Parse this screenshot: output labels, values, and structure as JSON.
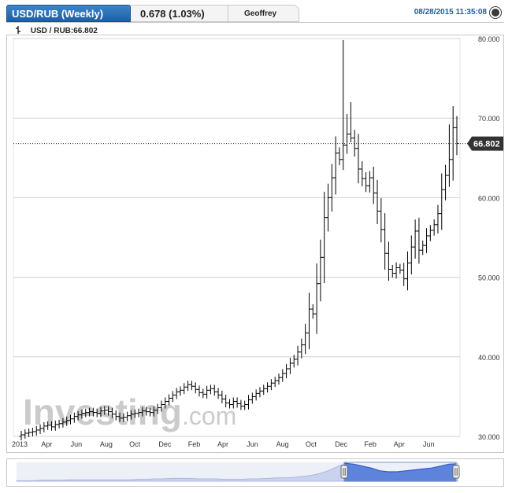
{
  "header": {
    "title": "USD/RUB (Weekly)",
    "change": "0.678 (1.03%)",
    "user": "Geoffrey",
    "timestamp": "08/28/2015 11:35:08"
  },
  "legend_label": "USD / RUB:66.802",
  "watermark": {
    "main": "Investing",
    "suffix": ".com"
  },
  "colors": {
    "accent": "#1c5fa5",
    "candle": "#000000",
    "navigator": "#2f5fc8",
    "price_tag": "#333333"
  },
  "chart_data": {
    "type": "line",
    "title": "USD/RUB (Weekly)",
    "ylim": [
      30,
      80
    ],
    "y_ticks": [
      "30.000",
      "40.000",
      "50.000",
      "60.000",
      "70.000",
      "80.000"
    ],
    "x_ticks": [
      "2013",
      "Apr",
      "Jun",
      "Aug",
      "Oct",
      "Dec",
      "Feb",
      "Apr",
      "Jun",
      "Aug",
      "Oct",
      "Dec",
      "Feb",
      "Apr",
      "Jun"
    ],
    "current_value": 66.802,
    "current_label": "66.802",
    "series": [
      {
        "values": [
          30.2,
          30.4,
          30.5,
          30.6,
          30.8,
          31.0,
          31.3,
          31.4,
          31.2,
          31.5,
          31.6,
          31.8,
          32.0,
          32.2,
          32.5,
          32.7,
          32.9,
          33.0,
          33.1,
          33.0,
          32.9,
          33.2,
          33.3,
          33.1,
          32.8,
          32.5,
          32.3,
          32.4,
          32.6,
          32.8,
          32.9,
          33.0,
          33.2,
          33.1,
          33.0,
          33.3,
          33.6,
          34.0,
          34.4,
          34.8,
          35.2,
          35.6,
          35.8,
          36.2,
          36.5,
          36.3,
          35.9,
          35.5,
          35.3,
          35.8,
          36.0,
          35.6,
          35.2,
          34.7,
          34.2,
          34.0,
          34.4,
          34.1,
          33.8,
          34.0,
          34.6,
          35.0,
          35.4,
          35.7,
          36.0,
          36.3,
          36.7,
          37.0,
          37.4,
          37.9,
          38.5,
          39.2,
          39.7,
          40.6,
          41.5,
          43.0,
          46.0,
          45.4,
          49.2,
          52.5,
          57.5,
          60.0,
          62.5,
          65.6,
          64.8,
          66.6,
          68.0,
          67.5,
          66.2,
          63.6,
          62.4,
          61.5,
          62.5,
          60.6,
          58.3,
          56.0,
          53.0,
          51.0,
          50.5,
          51.2,
          50.9,
          49.8,
          51.8,
          53.8,
          55.8,
          53.4,
          54.0,
          55.2,
          55.9,
          56.6,
          58.0,
          61.0,
          62.8,
          64.8,
          68.8,
          66.802
        ]
      }
    ],
    "navigator": {
      "x_ticks": [],
      "values": [
        31,
        31,
        31,
        32,
        32,
        32,
        33,
        33,
        33,
        33,
        33,
        33,
        33,
        33,
        34,
        34,
        35,
        35,
        36,
        36,
        36,
        35,
        35,
        35,
        34,
        34,
        34,
        35,
        35,
        36,
        37,
        37,
        38,
        40,
        42,
        46,
        52,
        60,
        68,
        66,
        62,
        58,
        52,
        50,
        50,
        52,
        54,
        56,
        58,
        62,
        66,
        67
      ]
    }
  }
}
